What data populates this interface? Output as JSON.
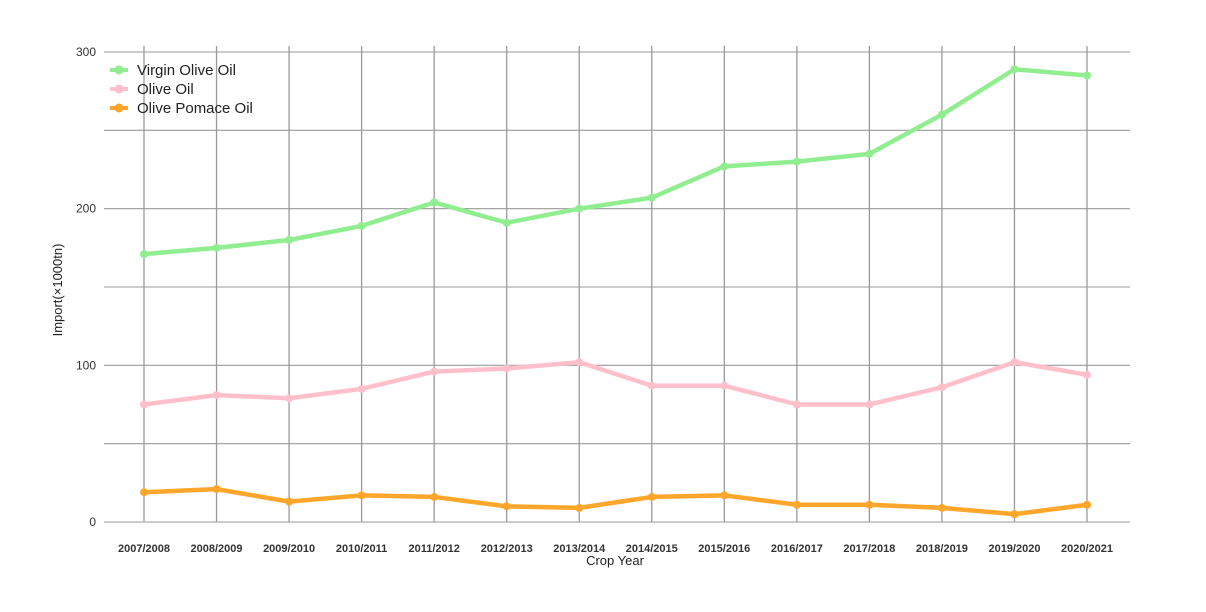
{
  "chart_data": {
    "type": "line",
    "title": "",
    "xlabel": "Crop Year",
    "ylabel": "Import(×1000tn)",
    "categories": [
      "2007/2008",
      "2008/2009",
      "2009/2010",
      "2010/2011",
      "2011/2012",
      "2012/2013",
      "2013/2014",
      "2014/2015",
      "2015/2016",
      "2016/2017",
      "2017/2018",
      "2018/2019",
      "2019/2020",
      "2020/2021"
    ],
    "ylim": [
      0,
      300
    ],
    "yticks": [
      0,
      100,
      200,
      300
    ],
    "grid": true,
    "legend_position": "top-left",
    "series": [
      {
        "name": "Virgin Olive Oil",
        "color": "#90ee90",
        "values": [
          171,
          175,
          180,
          189,
          204,
          191,
          200,
          207,
          227,
          230,
          235,
          260,
          289,
          285
        ]
      },
      {
        "name": "Olive Oil",
        "color": "#ffc0cb",
        "values": [
          75,
          81,
          79,
          85,
          96,
          98,
          102,
          87,
          87,
          75,
          75,
          86,
          102,
          94
        ]
      },
      {
        "name": "Olive Pomace Oil",
        "color": "#ffa62b",
        "values": [
          19,
          21,
          13,
          17,
          16,
          10,
          9,
          16,
          17,
          11,
          11,
          9,
          5,
          11
        ]
      }
    ]
  }
}
